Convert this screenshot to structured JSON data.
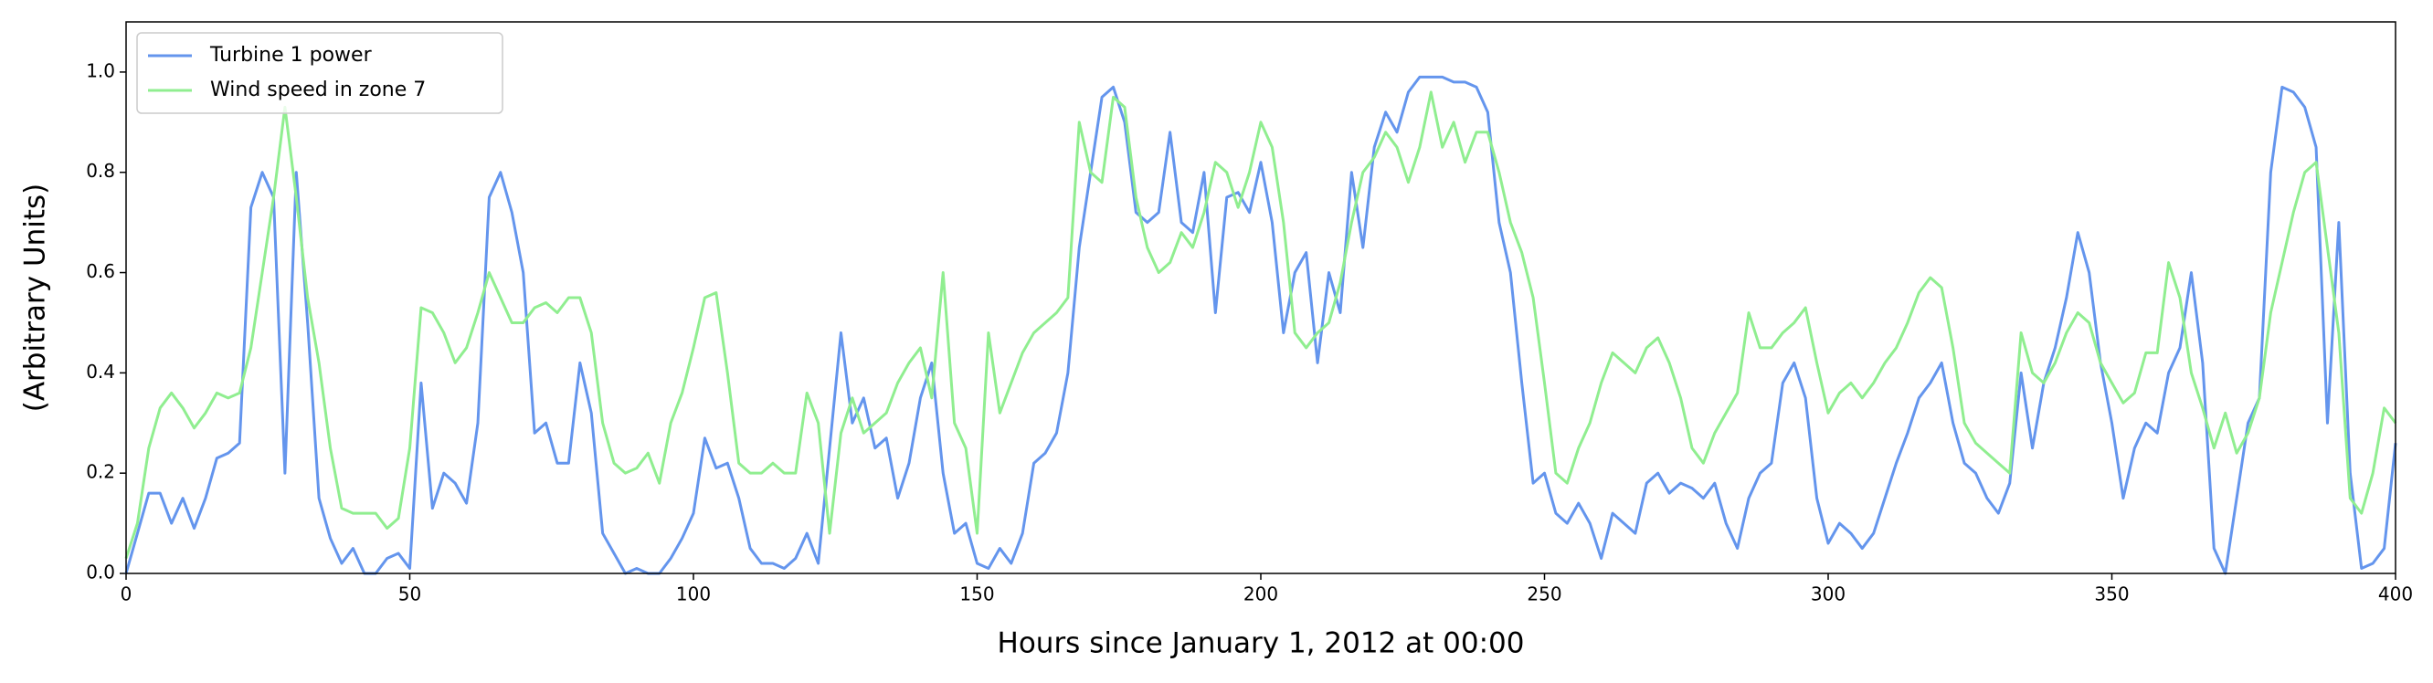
{
  "chart_data": {
    "type": "line",
    "xlabel": "Hours since January 1, 2012 at 00:00",
    "ylabel": "(Arbitrary Units)",
    "xlim": [
      0,
      400
    ],
    "ylim": [
      0,
      1.1
    ],
    "xticks": [
      0,
      50,
      100,
      150,
      200,
      250,
      300,
      350,
      400
    ],
    "yticks": [
      {
        "value": 0,
        "label": "0.0"
      },
      0.2,
      0.4,
      0.6,
      0.8,
      {
        "value": 1,
        "label": "1.0"
      }
    ],
    "legend": "upper left",
    "x": [
      0,
      2,
      4,
      6,
      8,
      10,
      12,
      14,
      16,
      18,
      20,
      22,
      24,
      26,
      28,
      30,
      32,
      34,
      36,
      38,
      40,
      42,
      44,
      46,
      48,
      50,
      52,
      54,
      56,
      58,
      60,
      62,
      64,
      66,
      68,
      70,
      72,
      74,
      76,
      78,
      80,
      82,
      84,
      86,
      88,
      90,
      92,
      94,
      96,
      98,
      100,
      102,
      104,
      106,
      108,
      110,
      112,
      114,
      116,
      118,
      120,
      122,
      124,
      126,
      128,
      130,
      132,
      134,
      136,
      138,
      140,
      142,
      144,
      146,
      148,
      150,
      152,
      154,
      156,
      158,
      160,
      162,
      164,
      166,
      168,
      170,
      172,
      174,
      176,
      178,
      180,
      182,
      184,
      186,
      188,
      190,
      192,
      194,
      196,
      198,
      200,
      202,
      204,
      206,
      208,
      210,
      212,
      214,
      216,
      218,
      220,
      222,
      224,
      226,
      228,
      230,
      232,
      234,
      236,
      238,
      240,
      242,
      244,
      246,
      248,
      250,
      252,
      254,
      256,
      258,
      260,
      262,
      264,
      266,
      268,
      270,
      272,
      274,
      276,
      278,
      280,
      282,
      284,
      286,
      288,
      290,
      292,
      294,
      296,
      298,
      300,
      302,
      304,
      306,
      308,
      310,
      312,
      314,
      316,
      318,
      320,
      322,
      324,
      326,
      328,
      330,
      332,
      334,
      336,
      338,
      340,
      342,
      344,
      346,
      348,
      350,
      352,
      354,
      356,
      358,
      360,
      362,
      364,
      366,
      368,
      370,
      372,
      374,
      376,
      378,
      380,
      382,
      384,
      386,
      388,
      390,
      392,
      394,
      396,
      398,
      400
    ],
    "series": [
      {
        "name": "Turbine 1 power",
        "color": "#6495ed",
        "values": [
          0.0,
          0.08,
          0.16,
          0.16,
          0.1,
          0.15,
          0.09,
          0.15,
          0.23,
          0.24,
          0.26,
          0.73,
          0.8,
          0.75,
          0.2,
          0.8,
          0.5,
          0.15,
          0.07,
          0.02,
          0.05,
          0.0,
          0.0,
          0.03,
          0.04,
          0.01,
          0.38,
          0.13,
          0.2,
          0.18,
          0.14,
          0.3,
          0.75,
          0.8,
          0.72,
          0.6,
          0.28,
          0.3,
          0.22,
          0.22,
          0.42,
          0.32,
          0.08,
          0.04,
          0.0,
          0.01,
          0.0,
          0.0,
          0.03,
          0.07,
          0.12,
          0.27,
          0.21,
          0.22,
          0.15,
          0.05,
          0.02,
          0.02,
          0.01,
          0.03,
          0.08,
          0.02,
          0.25,
          0.48,
          0.3,
          0.35,
          0.25,
          0.27,
          0.15,
          0.22,
          0.35,
          0.42,
          0.2,
          0.08,
          0.1,
          0.02,
          0.01,
          0.05,
          0.02,
          0.08,
          0.22,
          0.24,
          0.28,
          0.4,
          0.65,
          0.8,
          0.95,
          0.97,
          0.9,
          0.72,
          0.7,
          0.72,
          0.88,
          0.7,
          0.68,
          0.8,
          0.52,
          0.75,
          0.76,
          0.72,
          0.82,
          0.7,
          0.48,
          0.6,
          0.64,
          0.42,
          0.6,
          0.52,
          0.8,
          0.65,
          0.85,
          0.92,
          0.88,
          0.96,
          0.99,
          0.99,
          0.99,
          0.98,
          0.98,
          0.97,
          0.92,
          0.7,
          0.6,
          0.38,
          0.18,
          0.2,
          0.12,
          0.1,
          0.14,
          0.1,
          0.03,
          0.12,
          0.1,
          0.08,
          0.18,
          0.2,
          0.16,
          0.18,
          0.17,
          0.15,
          0.18,
          0.1,
          0.05,
          0.15,
          0.2,
          0.22,
          0.38,
          0.42,
          0.35,
          0.15,
          0.06,
          0.1,
          0.08,
          0.05,
          0.08,
          0.15,
          0.22,
          0.28,
          0.35,
          0.38,
          0.42,
          0.3,
          0.22,
          0.2,
          0.15,
          0.12,
          0.18,
          0.4,
          0.25,
          0.38,
          0.45,
          0.55,
          0.68,
          0.6,
          0.42,
          0.3,
          0.15,
          0.25,
          0.3,
          0.28,
          0.4,
          0.45,
          0.6,
          0.42,
          0.05,
          0.0,
          0.15,
          0.3,
          0.35,
          0.8,
          0.97,
          0.96,
          0.93,
          0.85,
          0.3,
          0.7,
          0.2,
          0.01,
          0.02,
          0.05,
          0.26
        ]
      },
      {
        "name": "Wind speed in zone 7",
        "color": "#90ee90",
        "values": [
          0.03,
          0.1,
          0.25,
          0.33,
          0.36,
          0.33,
          0.29,
          0.32,
          0.36,
          0.35,
          0.36,
          0.45,
          0.6,
          0.75,
          0.93,
          0.75,
          0.55,
          0.42,
          0.25,
          0.13,
          0.12,
          0.12,
          0.12,
          0.09,
          0.11,
          0.25,
          0.53,
          0.52,
          0.48,
          0.42,
          0.45,
          0.52,
          0.6,
          0.55,
          0.5,
          0.5,
          0.53,
          0.54,
          0.52,
          0.55,
          0.55,
          0.48,
          0.3,
          0.22,
          0.2,
          0.21,
          0.24,
          0.18,
          0.3,
          0.36,
          0.45,
          0.55,
          0.56,
          0.4,
          0.22,
          0.2,
          0.2,
          0.22,
          0.2,
          0.2,
          0.36,
          0.3,
          0.08,
          0.28,
          0.35,
          0.28,
          0.3,
          0.32,
          0.38,
          0.42,
          0.45,
          0.35,
          0.6,
          0.3,
          0.25,
          0.08,
          0.48,
          0.32,
          0.38,
          0.44,
          0.48,
          0.5,
          0.52,
          0.55,
          0.9,
          0.8,
          0.78,
          0.95,
          0.93,
          0.75,
          0.65,
          0.6,
          0.62,
          0.68,
          0.65,
          0.72,
          0.82,
          0.8,
          0.73,
          0.8,
          0.9,
          0.85,
          0.7,
          0.48,
          0.45,
          0.48,
          0.5,
          0.58,
          0.7,
          0.8,
          0.83,
          0.88,
          0.85,
          0.78,
          0.85,
          0.96,
          0.85,
          0.9,
          0.82,
          0.88,
          0.88,
          0.8,
          0.7,
          0.64,
          0.55,
          0.38,
          0.2,
          0.18,
          0.25,
          0.3,
          0.38,
          0.44,
          0.42,
          0.4,
          0.45,
          0.47,
          0.42,
          0.35,
          0.25,
          0.22,
          0.28,
          0.32,
          0.36,
          0.52,
          0.45,
          0.45,
          0.48,
          0.5,
          0.53,
          0.42,
          0.32,
          0.36,
          0.38,
          0.35,
          0.38,
          0.42,
          0.45,
          0.5,
          0.56,
          0.59,
          0.57,
          0.45,
          0.3,
          0.26,
          0.24,
          0.22,
          0.2,
          0.48,
          0.4,
          0.38,
          0.42,
          0.48,
          0.52,
          0.5,
          0.42,
          0.38,
          0.34,
          0.36,
          0.44,
          0.44,
          0.62,
          0.55,
          0.4,
          0.33,
          0.25,
          0.32,
          0.24,
          0.28,
          0.35,
          0.52,
          0.62,
          0.72,
          0.8,
          0.82,
          0.65,
          0.48,
          0.15,
          0.12,
          0.2,
          0.33,
          0.3
        ]
      }
    ]
  }
}
